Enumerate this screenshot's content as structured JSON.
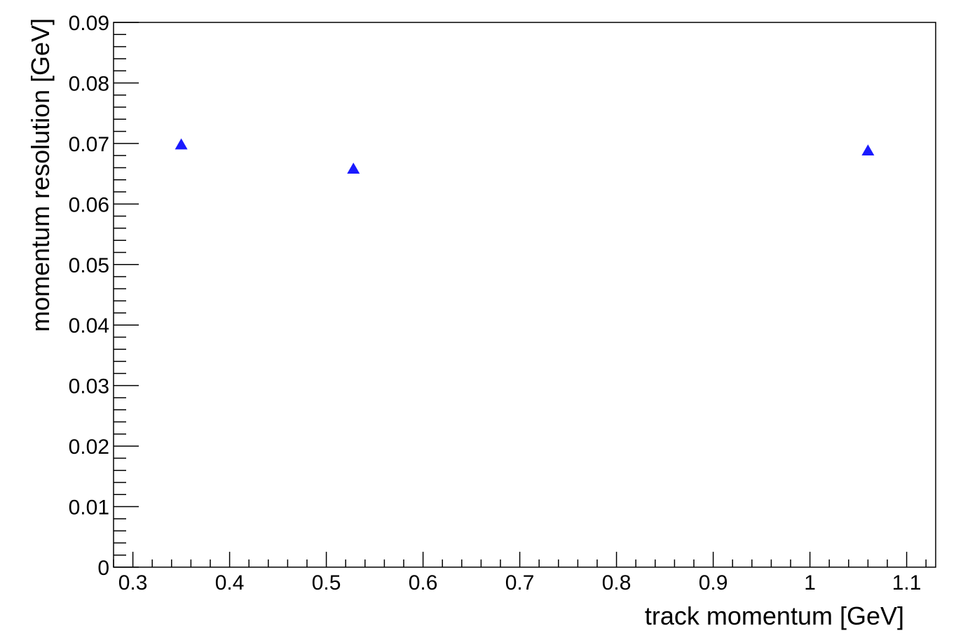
{
  "chart_data": {
    "type": "scatter",
    "xlabel": "track momentum [GeV]",
    "ylabel": "momentum resolution [GeV]",
    "xlim": [
      0.28,
      1.13
    ],
    "ylim": [
      0,
      0.09
    ],
    "xticks": [
      0.3,
      0.4,
      0.5,
      0.6,
      0.7,
      0.8,
      0.9,
      1.0,
      1.1
    ],
    "xtick_labels": [
      "0.3",
      "0.4",
      "0.5",
      "0.6",
      "0.7",
      "0.8",
      "0.9",
      "1",
      "1.1"
    ],
    "yticks": [
      0,
      0.01,
      0.02,
      0.03,
      0.04,
      0.05,
      0.06,
      0.07,
      0.08,
      0.09
    ],
    "ytick_labels": [
      "0",
      "0.01",
      "0.02",
      "0.03",
      "0.04",
      "0.05",
      "0.06",
      "0.07",
      "0.08",
      "0.09"
    ],
    "grid": false,
    "marker": "triangle",
    "marker_color": "#1a1aff",
    "points": [
      {
        "x": 0.35,
        "y": 0.0698
      },
      {
        "x": 0.528,
        "y": 0.0658
      },
      {
        "x": 1.06,
        "y": 0.0688
      }
    ]
  }
}
